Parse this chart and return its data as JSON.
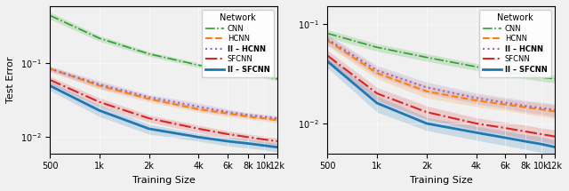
{
  "x": [
    500,
    1000,
    2000,
    4000,
    6000,
    8000,
    10000,
    12000
  ],
  "x_ticks": [
    500,
    1000,
    2000,
    4000,
    6000,
    8000,
    10000,
    12000
  ],
  "left": {
    "CNN": [
      0.45,
      0.22,
      0.135,
      0.095,
      0.08,
      0.073,
      0.067,
      0.062
    ],
    "HCNN": [
      0.085,
      0.05,
      0.033,
      0.024,
      0.021,
      0.019,
      0.018,
      0.017
    ],
    "II_HCNN": [
      0.085,
      0.052,
      0.035,
      0.026,
      0.022,
      0.02,
      0.019,
      0.018
    ],
    "SFCNN": [
      0.06,
      0.03,
      0.018,
      0.013,
      0.011,
      0.01,
      0.0093,
      0.0088
    ],
    "II_SFCNN": [
      0.05,
      0.023,
      0.013,
      0.01,
      0.0088,
      0.0082,
      0.0077,
      0.0073
    ],
    "CNN_lo": [
      0.4,
      0.2,
      0.125,
      0.088,
      0.075,
      0.069,
      0.063,
      0.058
    ],
    "CNN_hi": [
      0.5,
      0.24,
      0.145,
      0.102,
      0.085,
      0.077,
      0.071,
      0.066
    ],
    "HCNN_lo": [
      0.078,
      0.045,
      0.03,
      0.022,
      0.019,
      0.0175,
      0.0165,
      0.0155
    ],
    "HCNN_hi": [
      0.092,
      0.055,
      0.036,
      0.026,
      0.023,
      0.021,
      0.0195,
      0.0185
    ],
    "II_HCNN_lo": [
      0.078,
      0.046,
      0.032,
      0.023,
      0.02,
      0.0185,
      0.0175,
      0.0165
    ],
    "II_HCNN_hi": [
      0.092,
      0.058,
      0.038,
      0.029,
      0.024,
      0.0215,
      0.0205,
      0.0195
    ],
    "SFCNN_lo": [
      0.053,
      0.026,
      0.016,
      0.0115,
      0.0098,
      0.009,
      0.0083,
      0.0078
    ],
    "SFCNN_hi": [
      0.067,
      0.034,
      0.02,
      0.0145,
      0.0122,
      0.011,
      0.0103,
      0.0098
    ],
    "II_SFCNN_lo": [
      0.043,
      0.019,
      0.011,
      0.0088,
      0.0076,
      0.0071,
      0.0067,
      0.0063
    ],
    "II_SFCNN_hi": [
      0.057,
      0.027,
      0.015,
      0.0112,
      0.01,
      0.0093,
      0.0087,
      0.0083
    ]
  },
  "right": {
    "CNN": [
      0.08,
      0.058,
      0.046,
      0.037,
      0.033,
      0.031,
      0.029,
      0.028
    ],
    "HCNN": [
      0.068,
      0.032,
      0.021,
      0.017,
      0.0155,
      0.0145,
      0.0138,
      0.0132
    ],
    "II_HCNN": [
      0.07,
      0.034,
      0.023,
      0.018,
      0.0162,
      0.015,
      0.0143,
      0.0137
    ],
    "SFCNN": [
      0.048,
      0.02,
      0.013,
      0.01,
      0.009,
      0.0083,
      0.0078,
      0.0074
    ],
    "II_SFCNN": [
      0.042,
      0.016,
      0.01,
      0.0081,
      0.0072,
      0.0066,
      0.0062,
      0.0058
    ],
    "CNN_lo": [
      0.073,
      0.053,
      0.042,
      0.034,
      0.03,
      0.028,
      0.0265,
      0.0255
    ],
    "CNN_hi": [
      0.087,
      0.063,
      0.05,
      0.04,
      0.036,
      0.034,
      0.0315,
      0.0305
    ],
    "HCNN_lo": [
      0.06,
      0.028,
      0.018,
      0.0148,
      0.0135,
      0.0125,
      0.0118,
      0.0112
    ],
    "HCNN_hi": [
      0.076,
      0.036,
      0.024,
      0.0192,
      0.0175,
      0.0165,
      0.0158,
      0.0152
    ],
    "II_HCNN_lo": [
      0.062,
      0.03,
      0.02,
      0.0158,
      0.0142,
      0.013,
      0.0123,
      0.0117
    ],
    "II_HCNN_hi": [
      0.078,
      0.038,
      0.026,
      0.0202,
      0.0182,
      0.017,
      0.0163,
      0.0157
    ],
    "SFCNN_lo": [
      0.042,
      0.017,
      0.011,
      0.0086,
      0.0077,
      0.007,
      0.0066,
      0.0062
    ],
    "SFCNN_hi": [
      0.054,
      0.023,
      0.015,
      0.0114,
      0.0103,
      0.0096,
      0.009,
      0.0086
    ],
    "II_SFCNN_lo": [
      0.036,
      0.013,
      0.0085,
      0.0068,
      0.006,
      0.0055,
      0.0051,
      0.0048
    ],
    "II_SFCNN_hi": [
      0.048,
      0.019,
      0.0115,
      0.0094,
      0.0084,
      0.0077,
      0.0073,
      0.0068
    ]
  },
  "colors": {
    "CNN": "#2ca02c",
    "HCNN": "#ff7f0e",
    "II_HCNN": "#9467bd",
    "SFCNN": "#d62728",
    "II_SFCNN": "#1f77b4"
  },
  "linestyles": {
    "CNN": "-.",
    "HCNN": "--",
    "II_HCNN": ":",
    "SFCNN": "-.",
    "II_SFCNN": "-"
  },
  "linewidths": {
    "CNN": 1.2,
    "HCNN": 1.5,
    "II_HCNN": 1.5,
    "SFCNN": 1.5,
    "II_SFCNN": 2.0
  },
  "legend_labels": {
    "CNN": "CNN",
    "HCNN": "HCNN",
    "II_HCNN": "II – HCNN",
    "SFCNN": "SFCNN",
    "II_SFCNN": "II – SFCNN"
  },
  "ylabel": "Test Error",
  "xlabel": "Training Size",
  "ylim_left": [
    0.006,
    0.6
  ],
  "ylim_right": [
    0.005,
    0.15
  ],
  "background_color": "#f0f0f0",
  "legend_title": "Network"
}
